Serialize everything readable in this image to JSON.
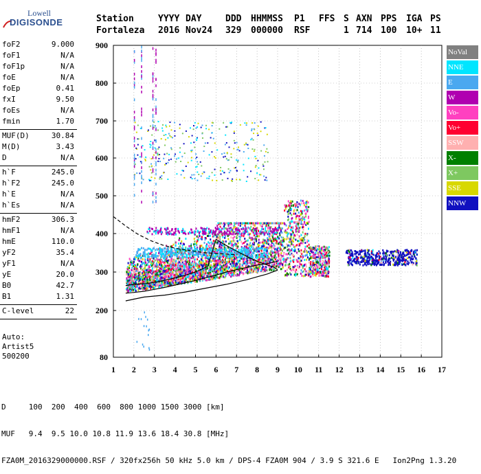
{
  "logo": {
    "top": "Lowell",
    "bottom": "DIGISONDE"
  },
  "header": {
    "row1": [
      "Station",
      "YYYY",
      "DAY",
      "DDD",
      "HHMMSS",
      "P1",
      "FFS",
      "S",
      "AXN",
      "PPS",
      "IGA",
      "PS"
    ],
    "row2": [
      "Fortaleza",
      "2016",
      "Nov24",
      "329",
      "000000",
      "RSF",
      "1",
      "714",
      "100",
      "10+",
      "11"
    ]
  },
  "params": {
    "group1": [
      {
        "label": "foF2",
        "value": "9.000"
      },
      {
        "label": "foF1",
        "value": "N/A"
      },
      {
        "label": "foF1p",
        "value": "N/A"
      },
      {
        "label": "foE",
        "value": "N/A"
      },
      {
        "label": "foEp",
        "value": "0.41"
      },
      {
        "label": "fxI",
        "value": "9.50"
      },
      {
        "label": "foEs",
        "value": "N/A"
      },
      {
        "label": "fmin",
        "value": "1.70"
      }
    ],
    "group2": [
      {
        "label": "MUF(D)",
        "value": "30.84"
      },
      {
        "label": "M(D)",
        "value": "3.43"
      },
      {
        "label": "D",
        "value": "N/A"
      }
    ],
    "group3": [
      {
        "label": "h`F",
        "value": "245.0"
      },
      {
        "label": "h`F2",
        "value": "245.0"
      },
      {
        "label": "h`E",
        "value": "N/A"
      },
      {
        "label": "h`Es",
        "value": "N/A"
      }
    ],
    "group4": [
      {
        "label": "hmF2",
        "value": "306.3"
      },
      {
        "label": "hmF1",
        "value": "N/A"
      },
      {
        "label": "hmE",
        "value": "110.0"
      },
      {
        "label": "yF2",
        "value": "35.4"
      },
      {
        "label": "yF1",
        "value": "N/A"
      },
      {
        "label": "yE",
        "value": "20.0"
      },
      {
        "label": "B0",
        "value": "42.7"
      },
      {
        "label": "B1",
        "value": "1.31"
      }
    ],
    "group5": [
      {
        "label": "C-level",
        "value": "22"
      }
    ],
    "auto": [
      "Auto:",
      "Artist5",
      "500200"
    ]
  },
  "legend": [
    {
      "name": "NoVal",
      "color": "#808080"
    },
    {
      "name": "NNE",
      "color": "#00e5ff"
    },
    {
      "name": "E",
      "color": "#4aa8f0"
    },
    {
      "name": "W",
      "color": "#b000b0"
    },
    {
      "name": "Vo-",
      "color": "#ff40c0"
    },
    {
      "name": "Vo+",
      "color": "#ff0030"
    },
    {
      "name": "SSW",
      "color": "#ffb0b0"
    },
    {
      "name": "X-",
      "color": "#008000"
    },
    {
      "name": "X+",
      "color": "#7ec860"
    },
    {
      "name": "SSE",
      "color": "#d8d800"
    },
    {
      "name": "NNW",
      "color": "#1010c0"
    }
  ],
  "footer": {
    "line1": "D     100  200  400  600  800 1000 1500 3000 [km]",
    "line2": "MUF   9.4  9.5 10.0 10.8 11.9 13.6 18.4 30.8 [MHz]",
    "line3": "FZA0M_2016329000000.RSF / 320fx256h 50 kHz 5.0 km / DPS-4 FZA0M 904 / 3.9 S 321.6 E   Ion2Png 1.3.20"
  },
  "chart_data": {
    "type": "scatter",
    "title": "",
    "xlabel": "",
    "ylabel": "",
    "xlim": [
      1,
      17
    ],
    "ylim": [
      80,
      900
    ],
    "xticks": [
      1,
      2,
      3,
      4,
      5,
      6,
      7,
      8,
      9,
      10,
      11,
      12,
      13,
      14,
      15,
      16,
      17
    ],
    "yticks": [
      80,
      200,
      300,
      400,
      500,
      600,
      700,
      800,
      900
    ],
    "grid": true,
    "traces": [
      {
        "name": "ordinary_trace",
        "style": "solid",
        "x": [
          1.6,
          2.0,
          2.5,
          3.0,
          3.5,
          4.0,
          4.5,
          5.0,
          5.5,
          6.0,
          6.5,
          7.0,
          7.5,
          8.0,
          8.5,
          9.0
        ],
        "y": [
          245,
          247,
          250,
          255,
          260,
          266,
          272,
          278,
          285,
          292,
          300,
          306,
          312,
          318,
          322,
          328
        ]
      },
      {
        "name": "profile",
        "style": "solid",
        "x": [
          1.6,
          2.0,
          2.6,
          3.2,
          3.8,
          4.4,
          5.0,
          5.6,
          6.0,
          6.4,
          6.8,
          7.2,
          7.6,
          8.0,
          8.4,
          8.8,
          9.0
        ],
        "y": [
          265,
          268,
          270,
          275,
          282,
          290,
          300,
          315,
          385,
          372,
          360,
          349,
          338,
          328,
          320,
          313,
          306
        ]
      },
      {
        "name": "model_curve",
        "style": "dashed",
        "x": [
          1.0,
          1.6,
          2.2,
          2.8,
          3.4,
          4.0,
          4.6,
          5.2,
          5.8,
          6.4,
          7.0
        ],
        "y": [
          445,
          420,
          398,
          382,
          370,
          362,
          357,
          352,
          349,
          347,
          345
        ]
      }
    ],
    "echo_regions": [
      {
        "x": [
          1.6,
          9.3
        ],
        "y": [
          250,
          420
        ],
        "dominant": "mixed"
      },
      {
        "x": [
          2.0,
          8.5
        ],
        "y": [
          540,
          700
        ],
        "dominant": "scattered"
      },
      {
        "x": [
          9.3,
          11.5
        ],
        "y": [
          290,
          500
        ],
        "dominant": "mixed"
      },
      {
        "x": [
          12.3,
          15.8
        ],
        "y": [
          320,
          360
        ],
        "dominant": "NNW"
      }
    ]
  }
}
